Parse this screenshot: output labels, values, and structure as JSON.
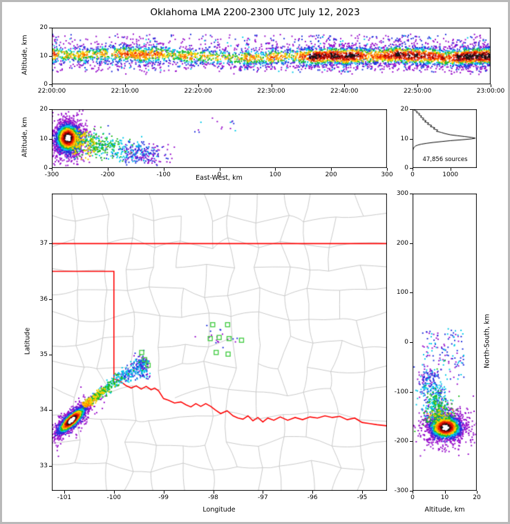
{
  "title": "Oklahoma LMA 2200-2300 UTC July 12, 2023",
  "chart_data": [
    {
      "id": "time_height",
      "type": "scatter",
      "xlabel": "",
      "ylabel": "Altitude, km",
      "xtick_labels": [
        "22:00:00",
        "22:10:00",
        "22:20:00",
        "22:30:00",
        "22:40:00",
        "22:50:00",
        "23:00:00"
      ],
      "yticks": [
        0,
        10,
        20
      ],
      "ylim": [
        0,
        20
      ],
      "band": {
        "alt_center_km": 10.4,
        "alt_spread_km": 2.0,
        "alt_min_km": 4,
        "alt_max_km": 18
      },
      "description": "VHF lightning source density vs time; continuous dense band 5-15 km altitude across the full hour, densest (red) 8-13 km, sparse blue/violet points at band edges up to 18 km"
    },
    {
      "id": "ew_height",
      "type": "scatter",
      "xlabel": "East-West, km",
      "ylabel": "Altitude, km",
      "xticks": [
        -300,
        -200,
        -100,
        0,
        100,
        200,
        300
      ],
      "yticks": [
        0,
        10,
        20
      ],
      "xlim": [
        -300,
        300
      ],
      "ylim": [
        0,
        20
      ],
      "core": {
        "ew_km": -271,
        "alt_km": 10.2
      },
      "trail": {
        "from_ew_km": -262,
        "to_ew_km": -110,
        "alt_from_km": 9,
        "alt_to_km": 4
      },
      "description": "Dense source core (white/black/red center) near -270 km east-west at 5-15 km altitude; sparse trail descending eastward to about -110 km; few isolated points near -40 to +30 km at 12-17 km"
    },
    {
      "id": "alt_histogram",
      "type": "line",
      "annotation": "47,856 sources",
      "xticks": [
        0,
        1000
      ],
      "yticks": [
        0,
        10,
        20
      ],
      "xlim": [
        0,
        1700
      ],
      "ylim": [
        0,
        20
      ],
      "profile": [
        [
          20,
          15
        ],
        [
          19.6,
          55
        ],
        [
          19.2,
          130
        ],
        [
          18.9,
          100
        ],
        [
          18.5,
          190
        ],
        [
          18.1,
          160
        ],
        [
          17.7,
          240
        ],
        [
          17.3,
          210
        ],
        [
          16.9,
          300
        ],
        [
          16.5,
          260
        ],
        [
          16.1,
          360
        ],
        [
          15.7,
          320
        ],
        [
          15.3,
          430
        ],
        [
          14.9,
          390
        ],
        [
          14.5,
          510
        ],
        [
          14.1,
          470
        ],
        [
          13.7,
          590
        ],
        [
          13.3,
          550
        ],
        [
          12.9,
          670
        ],
        [
          12.5,
          630
        ],
        [
          12.1,
          760
        ],
        [
          11.7,
          860
        ],
        [
          11.3,
          1000
        ],
        [
          11,
          1180
        ],
        [
          10.7,
          1380
        ],
        [
          10.4,
          1560
        ],
        [
          10.15,
          1660
        ],
        [
          9.9,
          1560
        ],
        [
          9.6,
          1300
        ],
        [
          9.3,
          1000
        ],
        [
          9,
          770
        ],
        [
          8.7,
          550
        ],
        [
          8.4,
          370
        ],
        [
          8.1,
          230
        ],
        [
          7.8,
          140
        ],
        [
          7.5,
          80
        ],
        [
          7.1,
          45
        ],
        [
          6.7,
          25
        ],
        [
          6.3,
          14
        ],
        [
          5.9,
          9
        ],
        [
          5.5,
          7
        ],
        [
          5,
          6
        ],
        [
          4.5,
          5
        ],
        [
          4,
          4
        ],
        [
          3.5,
          4
        ],
        [
          3,
          3
        ],
        [
          2.5,
          3
        ],
        [
          2,
          3
        ],
        [
          1.5,
          2
        ],
        [
          1,
          2
        ],
        [
          0.5,
          2
        ],
        [
          0,
          2
        ]
      ],
      "description": "Histogram of source count vs altitude; peak about 1660 sources near 10 km, secondary shoulder 11-15 km, near zero below 7 km"
    },
    {
      "id": "map",
      "type": "scatter",
      "xlabel": "Longitude",
      "ylabel": "Latitude",
      "xticks": [
        -101,
        -100,
        -99,
        -98,
        -97,
        -96,
        -95
      ],
      "yticks": [
        33,
        34,
        35,
        36,
        37
      ],
      "xlim": [
        -101.25,
        -94.5
      ],
      "ylim": [
        32.55,
        37.9
      ],
      "core": {
        "lon": -100.85,
        "lat": 33.82
      },
      "trail": {
        "from": [
          -100.58,
          34.1
        ],
        "to": [
          -99.36,
          34.9
        ]
      },
      "secondary_cluster": {
        "lon": -99.42,
        "lat": 34.78
      },
      "stations": [
        [
          -98.01,
          35.54
        ],
        [
          -97.71,
          35.54
        ],
        [
          -98.06,
          35.29
        ],
        [
          -97.88,
          35.31
        ],
        [
          -97.68,
          35.29
        ],
        [
          -97.43,
          35.26
        ],
        [
          -97.94,
          35.04
        ],
        [
          -97.7,
          35.01
        ],
        [
          -99.44,
          35.04
        ],
        [
          -99.38,
          34.91
        ],
        [
          -99.31,
          34.81
        ]
      ],
      "state_border": {
        "kansas_south": [
          [
            -101.25,
            37.0
          ],
          [
            -94.5,
            37.0
          ]
        ],
        "panhandle": [
          [
            -101.25,
            36.5
          ],
          [
            -100.0,
            36.5
          ],
          [
            -100.0,
            34.56
          ]
        ],
        "red_river": [
          [
            -100.0,
            34.56
          ],
          [
            -99.92,
            34.55
          ],
          [
            -99.84,
            34.5
          ],
          [
            -99.75,
            34.44
          ],
          [
            -99.65,
            34.4
          ],
          [
            -99.55,
            34.44
          ],
          [
            -99.45,
            34.38
          ],
          [
            -99.35,
            34.43
          ],
          [
            -99.25,
            34.37
          ],
          [
            -99.18,
            34.4
          ],
          [
            -99.1,
            34.35
          ],
          [
            -99.0,
            34.21
          ],
          [
            -98.9,
            34.18
          ],
          [
            -98.78,
            34.13
          ],
          [
            -98.65,
            34.15
          ],
          [
            -98.55,
            34.1
          ],
          [
            -98.45,
            34.06
          ],
          [
            -98.35,
            34.12
          ],
          [
            -98.25,
            34.07
          ],
          [
            -98.15,
            34.12
          ],
          [
            -98.05,
            34.07
          ],
          [
            -97.95,
            34.0
          ],
          [
            -97.85,
            33.94
          ],
          [
            -97.72,
            33.99
          ],
          [
            -97.6,
            33.9
          ],
          [
            -97.5,
            33.86
          ],
          [
            -97.4,
            33.84
          ],
          [
            -97.3,
            33.9
          ],
          [
            -97.2,
            33.81
          ],
          [
            -97.1,
            33.87
          ],
          [
            -97.0,
            33.79
          ],
          [
            -96.9,
            33.86
          ],
          [
            -96.78,
            33.82
          ],
          [
            -96.65,
            33.88
          ],
          [
            -96.5,
            33.82
          ],
          [
            -96.35,
            33.87
          ],
          [
            -96.2,
            33.83
          ],
          [
            -96.05,
            33.88
          ],
          [
            -95.9,
            33.86
          ],
          [
            -95.75,
            33.9
          ],
          [
            -95.6,
            33.87
          ],
          [
            -95.45,
            33.89
          ],
          [
            -95.3,
            33.83
          ],
          [
            -95.15,
            33.86
          ],
          [
            -95.0,
            33.78
          ],
          [
            -94.85,
            33.76
          ],
          [
            -94.7,
            33.74
          ],
          [
            -94.5,
            33.72
          ]
        ]
      },
      "colors": {
        "state_border": "#ff0000",
        "county": "#c8c8c8",
        "station": "#44cc44"
      },
      "description": "Map of Oklahoma and surroundings: gray county lines, red state borders (Kansas line at 37N, panhandle at -100/-36.5, Red River along OK-TX border); dense storm core near (-100.9, 33.8), sparse trail northeast to southwest Oklahoma; green squares are LMA stations"
    },
    {
      "id": "ns_height",
      "type": "scatter",
      "xlabel": "Altitude, km",
      "ylabel": "North-South, km",
      "xticks": [
        0,
        10,
        20
      ],
      "yticks": [
        300,
        200,
        100,
        0,
        -100,
        -200,
        -300
      ],
      "xlim": [
        0,
        20
      ],
      "ylim": [
        -300,
        300
      ],
      "core": {
        "ns_km": -172,
        "alt_km": 10.3
      },
      "description": "Dense core near -175 km north-south at 5-15 km altitude; sparse blue/violet points northward to about +25 km"
    }
  ],
  "density_colormap": [
    {
      "min": 0.96,
      "color": "#ffffff"
    },
    {
      "min": 0.89,
      "color": "#151515"
    },
    {
      "min": 0.8,
      "color": "#990000"
    },
    {
      "min": 0.68,
      "color": "#ee2200"
    },
    {
      "min": 0.57,
      "color": "#ff8800"
    },
    {
      "min": 0.47,
      "color": "#ffd000"
    },
    {
      "min": 0.36,
      "color": "#22bb22"
    },
    {
      "min": 0.26,
      "color": "#00c8e8"
    },
    {
      "min": 0.14,
      "color": "#2233dd"
    },
    {
      "min": 0.0,
      "color": "#9911cc"
    }
  ],
  "colormap_note": "point density colormap: sparse violet/blue -> cyan -> green -> yellow -> orange -> red -> dark red; densest core black then white"
}
